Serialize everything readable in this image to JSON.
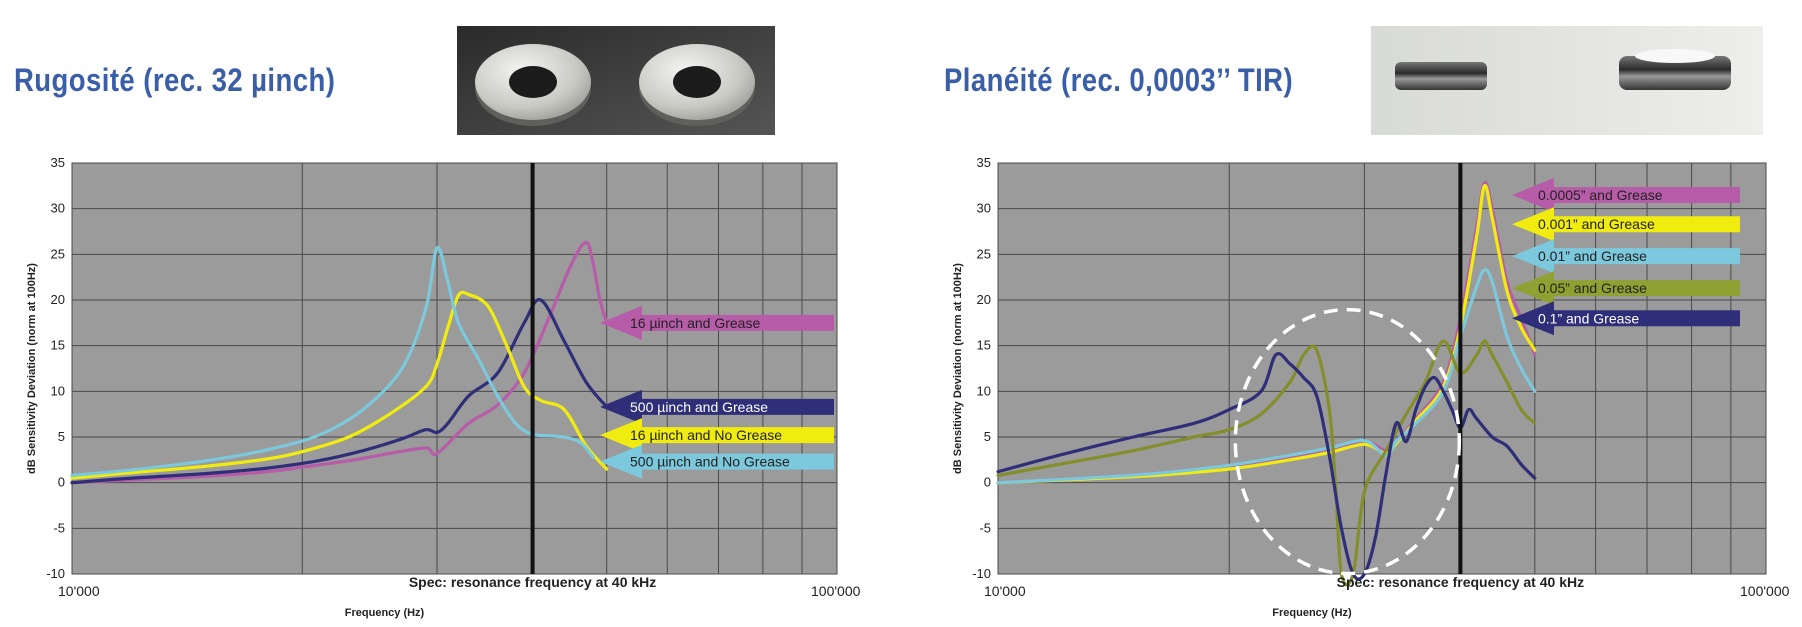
{
  "charts_meta": {
    "left": {
      "title": "Rugosité (rec. 32 µinch)"
    },
    "right": {
      "title": "Planéité (rec. 0,0003’’ TIR)"
    }
  },
  "chart_data": [
    {
      "type": "line",
      "title": "Rugosité (rec. 32 µinch)",
      "xlabel": "Frequency (Hz)",
      "ylabel": "dB Sensitivity Deviation (norm at 100Hz)",
      "xscale": "log",
      "xlim": [
        10000,
        100000
      ],
      "ylim": [
        -10,
        35
      ],
      "yticks": [
        -10,
        -5,
        0,
        5,
        10,
        15,
        20,
        25,
        30,
        35
      ],
      "xtick_labels": [
        "10'000",
        "100'000"
      ],
      "grid": true,
      "annotation": "Spec: resonance frequency at 40 kHz",
      "vline_x": 40000,
      "series": [
        {
          "name": "16 µinch and Grease",
          "color": "#b75ca8",
          "x": [
            10000,
            12000,
            15000,
            18000,
            20000,
            23000,
            26000,
            29000,
            30000,
            33000,
            36000,
            39000,
            42000,
            45000,
            47000,
            48000,
            49000,
            50000
          ],
          "y": [
            0,
            0.3,
            0.7,
            1.2,
            1.7,
            2.4,
            3.2,
            3.8,
            3.2,
            6.5,
            8.5,
            12,
            18,
            24,
            26.3,
            24,
            20,
            17.5
          ]
        },
        {
          "name": "500 µinch and Grease",
          "color": "#2e2f78",
          "x": [
            10000,
            12000,
            15000,
            18000,
            21000,
            24000,
            27000,
            29000,
            30000,
            31000,
            33000,
            36000,
            39000,
            41000,
            44000,
            47000,
            50000
          ],
          "y": [
            0,
            0.5,
            1.0,
            1.6,
            2.4,
            3.5,
            4.8,
            5.8,
            5.5,
            6.5,
            9.5,
            12,
            17.5,
            20,
            15.5,
            11,
            8.3
          ]
        },
        {
          "name": "16 µinch and No Grease",
          "color": "#f1ec10",
          "x": [
            10000,
            12000,
            15000,
            18000,
            20000,
            23000,
            26000,
            29000,
            30000,
            31000,
            32000,
            33000,
            35000,
            37000,
            39000,
            41000,
            44000,
            47000,
            50000
          ],
          "y": [
            0.5,
            1.1,
            1.8,
            2.6,
            3.4,
            5,
            7.5,
            10.5,
            13,
            17,
            20.5,
            20.6,
            19.3,
            15,
            10.5,
            9,
            8,
            4,
            1.5
          ]
        },
        {
          "name": "500 µinch and No Grease",
          "color": "#7cc8dc",
          "x": [
            10000,
            12000,
            15000,
            18000,
            21000,
            24000,
            27000,
            29000,
            30000,
            31000,
            32000,
            34000,
            36000,
            38000,
            40000,
            43000,
            46000,
            48000
          ],
          "y": [
            0.8,
            1.4,
            2.4,
            3.6,
            5.2,
            8,
            12.5,
            19,
            25.7,
            22,
            17.5,
            13.5,
            9.5,
            6.5,
            5.3,
            5.1,
            4.5,
            2.8
          ]
        }
      ]
    },
    {
      "type": "line",
      "title": "Planéité (rec. 0,0003’’ TIR)",
      "xlabel": "Frequency (Hz)",
      "ylabel": "dB Sensitivity Deviation (norm at 100Hz)",
      "xscale": "log",
      "xlim": [
        10000,
        100000
      ],
      "ylim": [
        -10,
        35
      ],
      "yticks": [
        -10,
        -5,
        0,
        5,
        10,
        15,
        20,
        25,
        30,
        35
      ],
      "xtick_labels": [
        "10'000",
        "100'000"
      ],
      "grid": true,
      "annotation": "Spec: resonance frequency at 40 kHz",
      "vline_x": 40000,
      "series": [
        {
          "name": "0.0005” and Grease",
          "color": "#b75ca8",
          "x": [
            10000,
            13000,
            16000,
            20000,
            24000,
            27000,
            30000,
            32000,
            33000,
            35000,
            38000,
            40000,
            42000,
            43000,
            44000,
            46000,
            48000,
            50000
          ],
          "y": [
            0,
            0.5,
            1.0,
            1.8,
            2.8,
            3.6,
            4.5,
            3.5,
            4.5,
            7,
            11,
            18,
            28,
            32.8,
            30,
            22,
            18,
            14
          ]
        },
        {
          "name": "0.001” and Grease",
          "color": "#f1ec10",
          "x": [
            10000,
            13000,
            16000,
            20000,
            24000,
            27000,
            30000,
            32000,
            33000,
            35000,
            38000,
            40000,
            42000,
            43000,
            44000,
            46000,
            48000,
            50000
          ],
          "y": [
            0,
            0.4,
            0.8,
            1.5,
            2.5,
            3.3,
            4.2,
            3.2,
            4.3,
            6.8,
            10.5,
            17,
            27,
            32.5,
            29,
            21,
            17,
            14.5
          ]
        },
        {
          "name": "0.01” and Grease",
          "color": "#7cc8dc",
          "x": [
            10000,
            13000,
            16000,
            20000,
            24000,
            27000,
            30000,
            32000,
            33000,
            35000,
            38000,
            40000,
            42000,
            43000,
            44000,
            46000,
            48000,
            50000
          ],
          "y": [
            0,
            0.5,
            1.0,
            1.9,
            3.0,
            3.8,
            4.6,
            3.0,
            4.5,
            6.5,
            10,
            16,
            21.5,
            23.3,
            22,
            16,
            12.5,
            10
          ]
        },
        {
          "name": "0.05” and Grease",
          "color": "#848e2a",
          "x": [
            10000,
            12000,
            15000,
            18000,
            20000,
            22000,
            24000,
            25000,
            26000,
            27000,
            27500,
            28000,
            29000,
            30000,
            32000,
            34000,
            36000,
            38000,
            40000,
            42000,
            43000,
            44000,
            46000,
            48000,
            50000
          ],
          "y": [
            0.8,
            2,
            3.5,
            5,
            5.8,
            7.5,
            11,
            14,
            14.5,
            8,
            0,
            -10,
            -10,
            -1,
            3.5,
            7.5,
            11,
            15.5,
            12,
            14,
            15.5,
            14,
            11,
            8,
            6.5
          ]
        },
        {
          "name": "0.1” and Grease",
          "color": "#2e2f78",
          "x": [
            10000,
            12000,
            15000,
            18000,
            20000,
            22000,
            23000,
            24000,
            25000,
            26000,
            27000,
            28000,
            29000,
            30000,
            31000,
            32000,
            33000,
            34000,
            35000,
            36000,
            37000,
            38000,
            39000,
            40000,
            41000,
            42000,
            44000,
            46000,
            48000,
            50000
          ],
          "y": [
            1.2,
            3,
            5,
            6.5,
            8,
            10,
            14,
            13,
            11.5,
            9.5,
            3,
            -5,
            -10,
            -10,
            -6,
            1,
            6.5,
            4.5,
            8,
            10.5,
            11.5,
            10,
            8,
            6,
            8,
            7,
            5,
            4,
            2,
            0.5
          ]
        }
      ]
    }
  ],
  "arrows": {
    "left": [
      {
        "label": "16 µinch and Grease",
        "color": "#b75ca8",
        "text_color": "#222222",
        "y": 17.5
      },
      {
        "label": "500 µinch and Grease",
        "color": "#2e2f78",
        "text_color": "#ffffff",
        "y": 8.3
      },
      {
        "label": "16 µinch and No Grease",
        "color": "#f1ec10",
        "text_color": "#222222",
        "y": 5.2
      },
      {
        "label": "500 µinch and No Grease",
        "color": "#7cc8dc",
        "text_color": "#222222",
        "y": 2.3
      }
    ],
    "right": [
      {
        "label": "0.0005” and Grease",
        "color": "#b75ca8",
        "text_color": "#222222",
        "y": 31.5
      },
      {
        "label": "0.001” and Grease",
        "color": "#f1ec10",
        "text_color": "#222222",
        "y": 28.3
      },
      {
        "label": "0.01” and Grease",
        "color": "#7cc8dc",
        "text_color": "#222222",
        "y": 24.8
      },
      {
        "label": "0.05” and Grease",
        "color": "#8fa132",
        "text_color": "#222222",
        "y": 21.3
      },
      {
        "label": "0.1” and Grease",
        "color": "#2e2f78",
        "text_color": "#ffffff",
        "y": 18.0
      }
    ]
  },
  "colors": {
    "plot_bg": "#9b9b9b",
    "grid": "#4a4a4a",
    "title": "#3b5ea8"
  }
}
